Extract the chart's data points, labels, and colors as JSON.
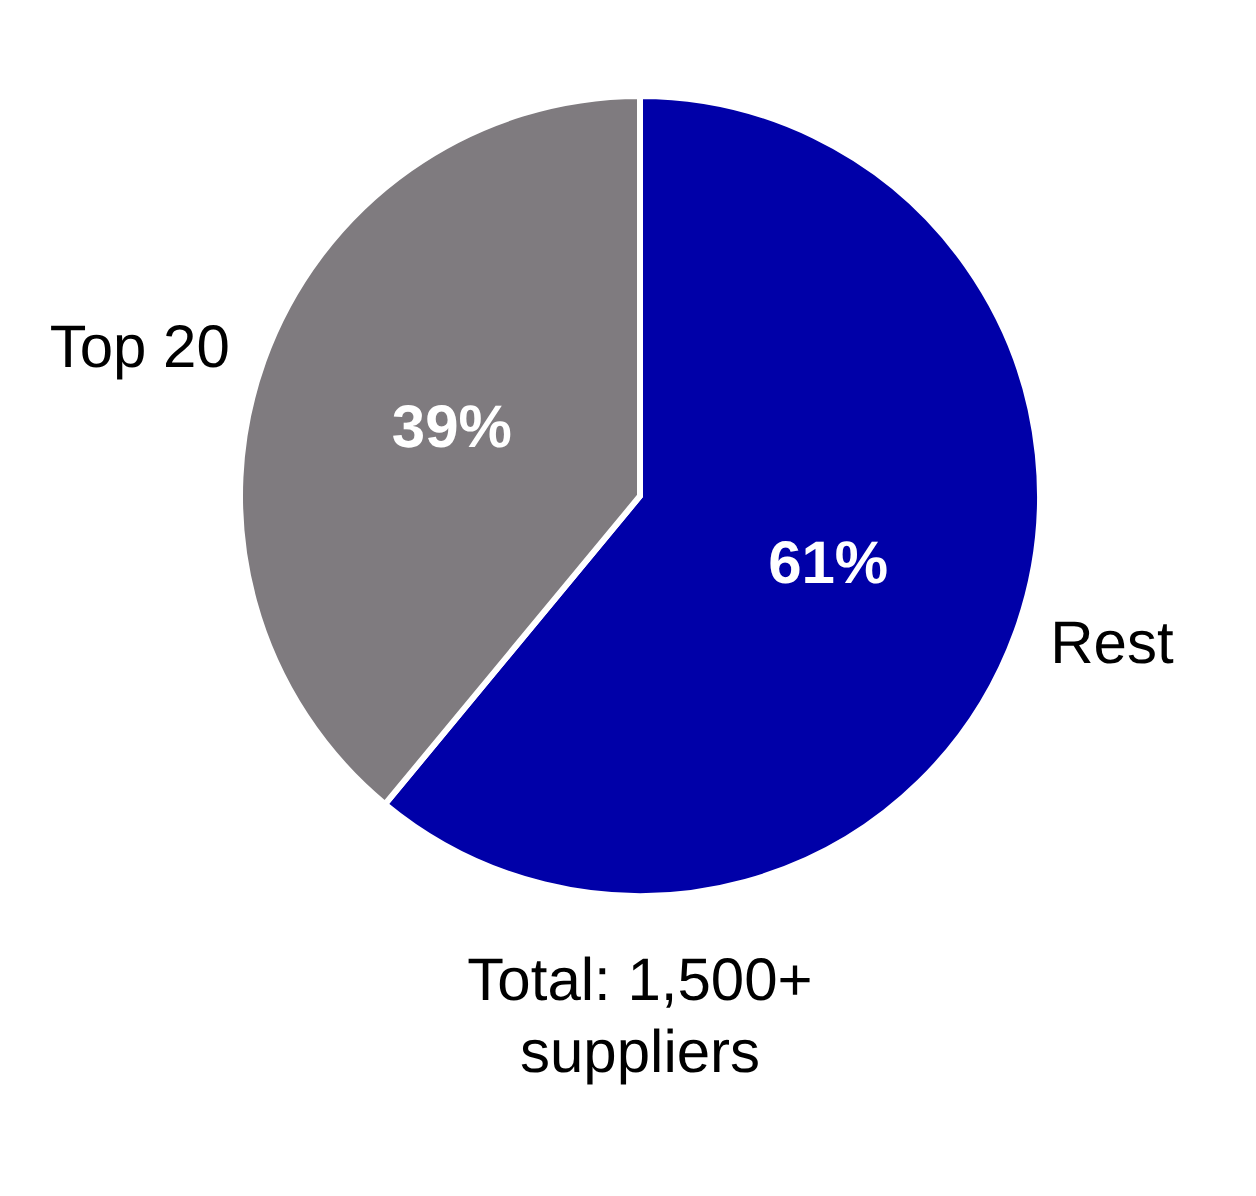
{
  "chart_data": {
    "type": "pie",
    "categories": [
      "Rest",
      "Top 20"
    ],
    "values": [
      61,
      39
    ],
    "colors": [
      "#0000a8",
      "#7f7b7f"
    ],
    "value_labels": [
      "61%",
      "39%"
    ],
    "annotations": [
      "Total: 1,500+ suppliers"
    ]
  }
}
